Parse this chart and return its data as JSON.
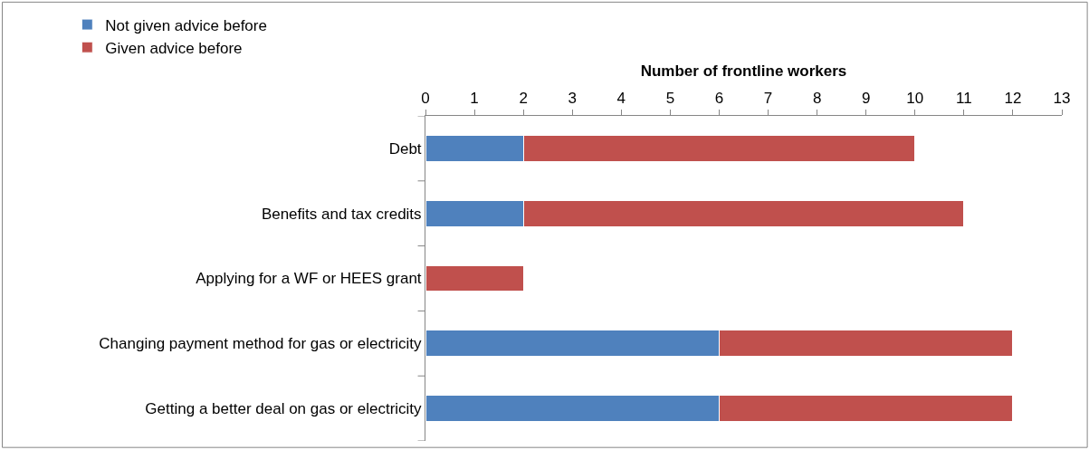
{
  "chart_data": {
    "type": "bar",
    "orientation": "horizontal",
    "stacked": true,
    "xlabel": "Number of frontline workers",
    "categories": [
      "Debt",
      "Benefits and tax credits",
      "Applying for a WF or HEES grant",
      "Changing payment method for gas or electricity",
      "Getting a better deal on gas or electricity"
    ],
    "series": [
      {
        "name": "Not given advice before",
        "color": "#4f81bd",
        "values": [
          2,
          2,
          0,
          6,
          6
        ]
      },
      {
        "name": "Given advice before",
        "color": "#c0504d",
        "values": [
          8,
          9,
          2,
          6,
          6
        ]
      }
    ],
    "xlim": [
      0,
      13
    ],
    "xticks": [
      0,
      1,
      2,
      3,
      4,
      5,
      6,
      7,
      8,
      9,
      10,
      11,
      12,
      13
    ],
    "legend": "top left"
  }
}
